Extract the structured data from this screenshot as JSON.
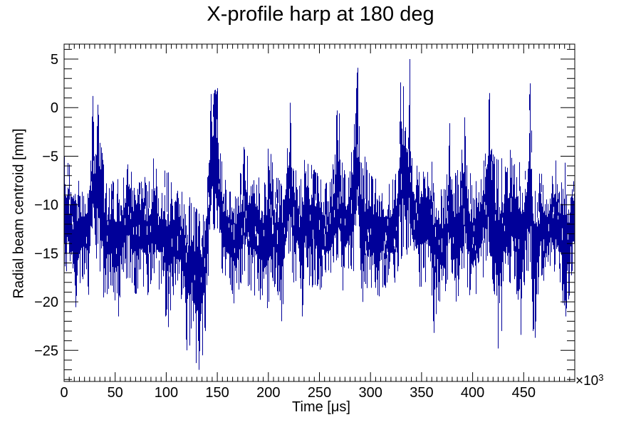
{
  "chart_data": {
    "type": "line",
    "title": "X-profile harp at 180 deg",
    "x_axis": {
      "title": "Time [μs]",
      "lim": [
        0,
        500
      ],
      "unit_label_base": "×10",
      "unit_label_exp": "3",
      "minor_step": 5,
      "major_ticks": [
        {
          "v": 0,
          "label": "0"
        },
        {
          "v": 50,
          "label": "50"
        },
        {
          "v": 100,
          "label": "100"
        },
        {
          "v": 150,
          "label": "150"
        },
        {
          "v": 200,
          "label": "200"
        },
        {
          "v": 250,
          "label": "250"
        },
        {
          "v": 300,
          "label": "300"
        },
        {
          "v": 350,
          "label": "350"
        },
        {
          "v": 400,
          "label": "400"
        },
        {
          "v": 450,
          "label": "450"
        },
        {
          "v": 500,
          "label": ""
        }
      ]
    },
    "y_axis": {
      "title": "Radial beam centroid [mm]",
      "lim": [
        -28.2,
        6.54
      ],
      "minor_step": 1,
      "major_ticks": [
        {
          "v": 5,
          "label": "5"
        },
        {
          "v": 0,
          "label": "0"
        },
        {
          "v": -5,
          "label": "−5"
        },
        {
          "v": -10,
          "label": "−10"
        },
        {
          "v": -15,
          "label": "−15"
        },
        {
          "v": -20,
          "label": "−20"
        },
        {
          "v": -25,
          "label": "−25"
        }
      ]
    },
    "line_color": "#000099",
    "frame_color": "#000000",
    "background": "#ffffff",
    "ticks_mirrored": true,
    "grid": false,
    "legend": null,
    "envelope": [
      [
        0,
        -5,
        -16
      ],
      [
        4,
        -5.5,
        -17.5
      ],
      [
        8,
        -6.5,
        -19
      ],
      [
        12,
        -6.8,
        -21.3
      ],
      [
        16,
        -7.5,
        -18
      ],
      [
        20,
        -8,
        -17.5
      ],
      [
        24,
        -6,
        -19.5
      ],
      [
        26,
        -4,
        -17
      ],
      [
        28,
        1.2,
        -14
      ],
      [
        30,
        -3,
        -16.5
      ],
      [
        33,
        0.3,
        -15
      ],
      [
        36,
        -2.9,
        -18
      ],
      [
        40,
        -7,
        -20.5
      ],
      [
        44,
        -8,
        -18.5
      ],
      [
        48,
        -7.5,
        -19
      ],
      [
        53,
        -7,
        -21.5
      ],
      [
        57,
        -8,
        -18
      ],
      [
        60,
        -6,
        -17.5
      ],
      [
        63,
        -2.8,
        -18
      ],
      [
        67,
        -6.5,
        -18.5
      ],
      [
        71,
        -7.5,
        -19.5
      ],
      [
        75,
        -7.5,
        -18
      ],
      [
        79,
        -7,
        -19
      ],
      [
        82,
        -8,
        -20
      ],
      [
        85,
        -7,
        -18
      ],
      [
        88,
        -4.8,
        -17.5
      ],
      [
        92,
        -7,
        -19
      ],
      [
        96,
        -8,
        -18.5
      ],
      [
        99,
        -6,
        -21.5
      ],
      [
        102,
        -6.5,
        -22.6
      ],
      [
        106,
        -7.5,
        -20
      ],
      [
        110,
        -7.5,
        -18
      ],
      [
        114,
        -8.5,
        -19.5
      ],
      [
        117,
        -8,
        -21
      ],
      [
        120,
        -8,
        -25
      ],
      [
        123,
        -9,
        -24.5
      ],
      [
        126,
        -9.5,
        -22
      ],
      [
        129,
        -10,
        -26.3
      ],
      [
        132,
        -9.5,
        -27
      ],
      [
        135,
        -10,
        -25.5
      ],
      [
        138,
        -9,
        -23
      ],
      [
        141,
        -5,
        -18
      ],
      [
        144,
        1.4,
        -14
      ],
      [
        147,
        1.8,
        -12.5
      ],
      [
        150,
        2,
        -13.5
      ],
      [
        153,
        -4.3,
        -16
      ],
      [
        157,
        -6.5,
        -18.5
      ],
      [
        161,
        -7.5,
        -19
      ],
      [
        165,
        -7.5,
        -20
      ],
      [
        168,
        -7.5,
        -21
      ],
      [
        172,
        -7,
        -18.5
      ],
      [
        175,
        -5.5,
        -18
      ],
      [
        177,
        -2.7,
        -17
      ],
      [
        181,
        -6,
        -19
      ],
      [
        186,
        -3.5,
        -20
      ],
      [
        190,
        -7,
        -19.5
      ],
      [
        194,
        -7,
        -20.5
      ],
      [
        197,
        -7.5,
        -21
      ],
      [
        201,
        -2.8,
        -20.4
      ],
      [
        205,
        -6.5,
        -18.5
      ],
      [
        209,
        -7,
        -19
      ],
      [
        213,
        -7.5,
        -22
      ],
      [
        217,
        -5.5,
        -18
      ],
      [
        221,
        0.5,
        -16
      ],
      [
        225,
        -5.5,
        -18.5
      ],
      [
        229,
        -6.5,
        -17.5
      ],
      [
        233,
        -7,
        -21.5
      ],
      [
        236,
        -3.5,
        -18
      ],
      [
        240,
        -6,
        -19
      ],
      [
        245,
        -3.6,
        -18.5
      ],
      [
        249,
        -6.5,
        -19.5
      ],
      [
        253,
        -7,
        -18.5
      ],
      [
        257,
        -7,
        -19
      ],
      [
        261,
        -7.5,
        -18.5
      ],
      [
        264,
        -5,
        -18
      ],
      [
        267,
        -0.3,
        -17
      ],
      [
        269,
        -0.6,
        -18
      ],
      [
        273,
        -6,
        -19
      ],
      [
        277,
        -6.5,
        -18
      ],
      [
        281,
        -4,
        -17.5
      ],
      [
        284,
        -1.7,
        -17
      ],
      [
        287,
        4.1,
        -15
      ],
      [
        290,
        -4,
        -18
      ],
      [
        293,
        -4,
        -20.6
      ],
      [
        297,
        -6,
        -18.5
      ],
      [
        301,
        -7,
        -19
      ],
      [
        305,
        -7,
        -19.5
      ],
      [
        308,
        -6.5,
        -19.9
      ],
      [
        312,
        -7.5,
        -18.5
      ],
      [
        316,
        -7,
        -19
      ],
      [
        320,
        -7.5,
        -19
      ],
      [
        324,
        -7,
        -18.5
      ],
      [
        327,
        -5,
        -17
      ],
      [
        329,
        2.6,
        -16
      ],
      [
        332,
        2.2,
        -15
      ],
      [
        335,
        -3,
        -17
      ],
      [
        338,
        5,
        -14
      ],
      [
        341,
        -3.7,
        -17.5
      ],
      [
        345,
        -6,
        -18.5
      ],
      [
        348,
        -4.9,
        -19
      ],
      [
        352,
        -6.5,
        -18
      ],
      [
        356,
        -3.5,
        -19
      ],
      [
        359,
        -4.5,
        -20
      ],
      [
        362,
        -6,
        -23.2
      ],
      [
        366,
        -7,
        -20
      ],
      [
        370,
        -8,
        -21
      ],
      [
        374,
        -8,
        -19
      ],
      [
        377,
        -1.6,
        -17
      ],
      [
        381,
        -7,
        -19
      ],
      [
        384,
        -6.5,
        -20.5
      ],
      [
        388,
        -6,
        -19
      ],
      [
        392,
        -1,
        -17.5
      ],
      [
        396,
        -6.5,
        -19
      ],
      [
        400,
        -7,
        -21.2
      ],
      [
        404,
        -7.5,
        -19
      ],
      [
        408,
        -6,
        -18.5
      ],
      [
        412,
        -4.5,
        -17
      ],
      [
        416,
        1.5,
        -15
      ],
      [
        419,
        -4.5,
        -17.5
      ],
      [
        422,
        -5,
        -20
      ],
      [
        425,
        -5,
        -24.8
      ],
      [
        428,
        -5,
        -23
      ],
      [
        431,
        -6,
        -19
      ],
      [
        435,
        -4.5,
        -18.5
      ],
      [
        438,
        -4,
        -18
      ],
      [
        441,
        -5,
        -18.5
      ],
      [
        444,
        -3.6,
        -19.5
      ],
      [
        447,
        -6.5,
        -23.4
      ],
      [
        450,
        -6.5,
        -19
      ],
      [
        453,
        -4,
        -17.5
      ],
      [
        456,
        2.5,
        -16
      ],
      [
        459,
        -5,
        -23
      ],
      [
        461,
        -6,
        -23.7
      ],
      [
        464,
        -7,
        -20
      ],
      [
        467,
        -6,
        -17.5
      ],
      [
        471,
        -7.5,
        -18.5
      ],
      [
        475,
        -8,
        -17
      ],
      [
        479,
        -5.3,
        -16.5
      ],
      [
        483,
        -5.5,
        -18
      ],
      [
        487,
        -7,
        -19.5
      ],
      [
        491,
        -5.2,
        -21.5
      ],
      [
        494,
        -9,
        -20
      ],
      [
        497,
        -4.8,
        -18
      ],
      [
        500,
        -8,
        -16
      ]
    ]
  }
}
